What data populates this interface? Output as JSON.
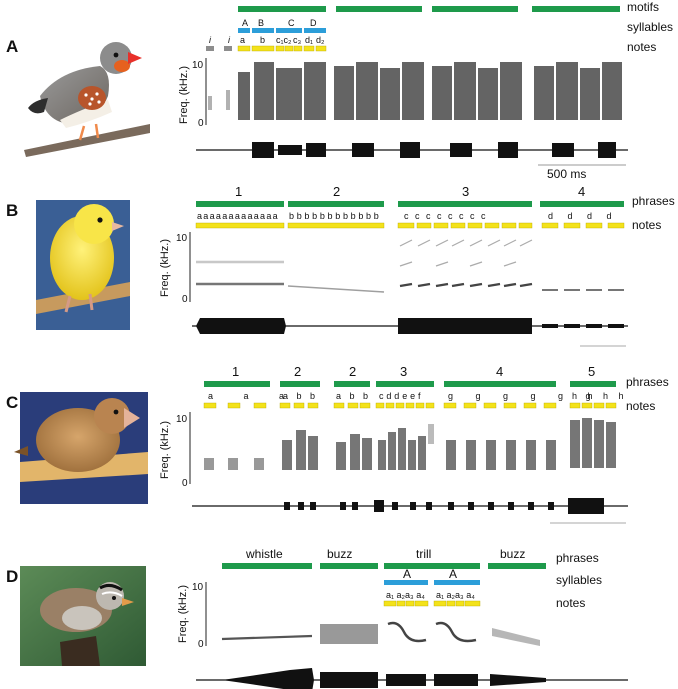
{
  "colors": {
    "green": "#1e9a4b",
    "blue": "#2c9ed9",
    "yellow": "#f3e21a",
    "grey": "#8d8d8d"
  },
  "axis": {
    "ylabel": "Freq. (kHz.)",
    "ytick_top": "10",
    "ytick_bottom": "0"
  },
  "panels": [
    {
      "letter": "A",
      "bird_icon": "zebra-finch-photo",
      "row_labels": [
        "motifs",
        "syllables",
        "notes"
      ],
      "syllables": [
        "A",
        "B",
        "C",
        "D"
      ],
      "intro_notes": [
        "i",
        "i"
      ],
      "notes": [
        "a",
        "b",
        "c₁c₂",
        "c₃",
        "d₁",
        "d₂"
      ],
      "scale_label": "500 ms"
    },
    {
      "letter": "B",
      "bird_icon": "canary-photo",
      "row_labels": [
        "phrases",
        "notes"
      ],
      "phrases": [
        "1",
        "2",
        "3",
        "4"
      ],
      "phrase_notes": [
        "a a a a a a a a a a a a a",
        "b b b b b b b b b b b b",
        "c  c  c  c  c  c  c  c",
        "d  d  d  d"
      ]
    },
    {
      "letter": "C",
      "bird_icon": "bengalese-finch-photo",
      "row_labels": [
        "phrases",
        "notes"
      ],
      "phrases": [
        "1",
        "2",
        "2",
        "3",
        "4",
        "5"
      ],
      "phrase_notes": [
        "a a a",
        "a b b",
        "a b b",
        "c d d e e f",
        "g g g g g g",
        "h h h h"
      ]
    },
    {
      "letter": "D",
      "bird_icon": "white-crowned-sparrow-photo",
      "row_labels": [
        "phrases",
        "syllables",
        "notes"
      ],
      "phrases": [
        "whistle",
        "buzz",
        "trill",
        "buzz"
      ],
      "syllables": [
        "A",
        "A"
      ],
      "notes": [
        "a₁ a₂a₃ a₄",
        "a₁ a₂a₃ a₄"
      ]
    }
  ]
}
